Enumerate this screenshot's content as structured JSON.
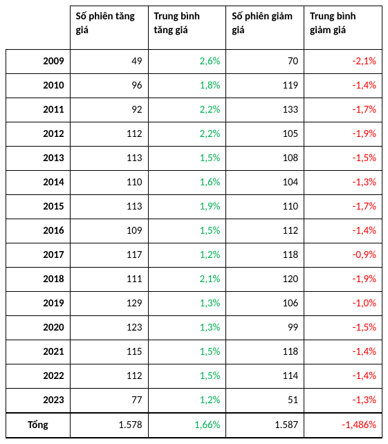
{
  "columns": {
    "spacer": "",
    "up_sessions": "Số phiên tăng giá",
    "up_avg": "Trung bình tăng giá",
    "down_sessions": "Số phiên giảm giá",
    "down_avg": "Trung bình giảm giá"
  },
  "colors": {
    "up": "#00b050",
    "down": "#ff0000",
    "border": "#000000",
    "text": "#000000",
    "background": "#ffffff"
  },
  "rows": [
    {
      "year": "2009",
      "up_sessions": "49",
      "up_avg": "2,6%",
      "down_sessions": "70",
      "down_avg": "-2,1%"
    },
    {
      "year": "2010",
      "up_sessions": "96",
      "up_avg": "1,8%",
      "down_sessions": "119",
      "down_avg": "-1,4%"
    },
    {
      "year": "2011",
      "up_sessions": "92",
      "up_avg": "2,2%",
      "down_sessions": "133",
      "down_avg": "-1,7%"
    },
    {
      "year": "2012",
      "up_sessions": "112",
      "up_avg": "2,2%",
      "down_sessions": "105",
      "down_avg": "-1,9%"
    },
    {
      "year": "2013",
      "up_sessions": "113",
      "up_avg": "1,5%",
      "down_sessions": "108",
      "down_avg": "-1,5%"
    },
    {
      "year": "2014",
      "up_sessions": "110",
      "up_avg": "1,6%",
      "down_sessions": "104",
      "down_avg": "-1,3%"
    },
    {
      "year": "2015",
      "up_sessions": "113",
      "up_avg": "1,9%",
      "down_sessions": "110",
      "down_avg": "-1,7%"
    },
    {
      "year": "2016",
      "up_sessions": "109",
      "up_avg": "1,5%",
      "down_sessions": "112",
      "down_avg": "-1,4%"
    },
    {
      "year": "2017",
      "up_sessions": "117",
      "up_avg": "1,2%",
      "down_sessions": "118",
      "down_avg": "-0,9%"
    },
    {
      "year": "2018",
      "up_sessions": "111",
      "up_avg": "2,1%",
      "down_sessions": "120",
      "down_avg": "-1,9%"
    },
    {
      "year": "2019",
      "up_sessions": "129",
      "up_avg": "1,3%",
      "down_sessions": "106",
      "down_avg": "-1,0%"
    },
    {
      "year": "2020",
      "up_sessions": "123",
      "up_avg": "1,3%",
      "down_sessions": "99",
      "down_avg": "-1,5%"
    },
    {
      "year": "2021",
      "up_sessions": "115",
      "up_avg": "1,5%",
      "down_sessions": "118",
      "down_avg": "-1,4%"
    },
    {
      "year": "2022",
      "up_sessions": "112",
      "up_avg": "1,5%",
      "down_sessions": "114",
      "down_avg": "-1,4%"
    },
    {
      "year": "2023",
      "up_sessions": "77",
      "up_avg": "1,2%",
      "down_sessions": "51",
      "down_avg": "-1,3%"
    }
  ],
  "total": {
    "label": "Tổng",
    "up_sessions": "1.578",
    "up_avg": "1,66%",
    "down_sessions": "1.587",
    "down_avg": "-1,486%"
  }
}
